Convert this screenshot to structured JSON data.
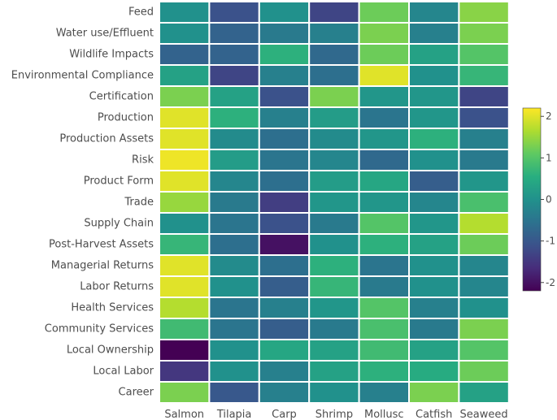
{
  "chart_data": {
    "type": "heatmap",
    "x_categories": [
      "Salmon",
      "Tilapia",
      "Carp",
      "Shrimp",
      "Mollusc",
      "Catfish",
      "Seaweed"
    ],
    "y_categories": [
      "Feed",
      "Water use/Effluent",
      "Wildlife Impacts",
      "Environmental Compliance",
      "Certification",
      "Production",
      "Production Assets",
      "Risk",
      "Product Form",
      "Trade",
      "Supply Chain",
      "Post-Harvest Assets",
      "Managerial Returns",
      "Labor Returns",
      "Health Services",
      "Community Services",
      "Local Ownership",
      "Local Labor",
      "Career"
    ],
    "values": [
      [
        0.0,
        -1.1,
        0.0,
        -1.3,
        1.2,
        -0.2,
        1.4
      ],
      [
        0.0,
        -0.8,
        -0.4,
        -0.3,
        1.3,
        -0.3,
        1.3
      ],
      [
        -0.8,
        -0.8,
        0.6,
        -0.7,
        1.2,
        0.3,
        1.0
      ],
      [
        0.3,
        -1.3,
        -0.3,
        -0.6,
        2.0,
        0.0,
        0.7
      ],
      [
        1.3,
        0.3,
        -1.1,
        1.3,
        0.1,
        0.1,
        -1.3
      ],
      [
        2.0,
        0.6,
        -0.3,
        0.2,
        -0.5,
        0.1,
        -1.1
      ],
      [
        2.0,
        -0.1,
        -0.6,
        -0.1,
        0.1,
        0.6,
        -0.3
      ],
      [
        2.1,
        0.2,
        -0.5,
        -0.2,
        -0.7,
        0.0,
        -0.4
      ],
      [
        2.0,
        -0.2,
        -0.6,
        0.2,
        0.4,
        -0.9,
        0.1
      ],
      [
        1.5,
        -0.4,
        -1.4,
        0.1,
        0.1,
        -0.2,
        0.9
      ],
      [
        0.0,
        -0.5,
        -1.1,
        -0.4,
        1.0,
        0.1,
        1.7
      ],
      [
        0.7,
        -0.6,
        -2.0,
        0.0,
        0.6,
        0.3,
        1.2
      ],
      [
        2.0,
        -0.1,
        -0.6,
        0.6,
        -0.5,
        0.0,
        -0.2
      ],
      [
        2.0,
        0.0,
        -0.9,
        0.7,
        -0.4,
        0.0,
        -0.2
      ],
      [
        1.7,
        -0.5,
        -0.3,
        0.1,
        1.0,
        -0.3,
        0.0
      ],
      [
        0.8,
        -0.5,
        -0.9,
        -0.4,
        0.9,
        -0.4,
        1.3
      ],
      [
        -2.2,
        0.0,
        0.4,
        0.3,
        0.8,
        0.3,
        1.0
      ],
      [
        -1.5,
        0.0,
        -0.3,
        0.3,
        0.6,
        0.5,
        1.2
      ],
      [
        1.3,
        -1.0,
        -0.3,
        0.0,
        -0.3,
        1.3,
        0.3
      ]
    ],
    "zlim": [
      -2.2,
      2.2
    ],
    "colorscale": "viridis",
    "colorbar": {
      "ticks": [
        2,
        1,
        0,
        -1,
        -2
      ],
      "tick_labels": [
        "2",
        "1",
        "0",
        "-1",
        "-2"
      ]
    },
    "cell_border_color": "#ffffff",
    "legend_position": "right",
    "title": "",
    "xlabel": "",
    "ylabel": ""
  }
}
